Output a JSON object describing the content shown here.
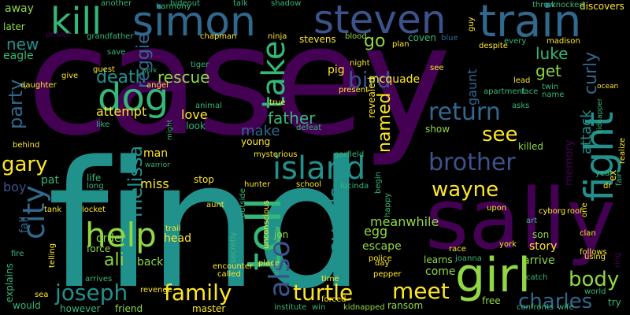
{
  "palette": {
    "background": "#000000",
    "dark_purple": "#440154",
    "indigo": "#3b528b",
    "slate_blue": "#31688e",
    "teal": "#21918c",
    "green": "#35b779",
    "lime": "#90d743",
    "yellow": "#fde725"
  },
  "words": [
    "casey",
    "find",
    "sally",
    "tell",
    "girl",
    "simon",
    "steven",
    "train",
    "kill",
    "dog",
    "fight",
    "also",
    "island",
    "help",
    "take",
    "city",
    "joseph",
    "family",
    "turtle",
    "meet",
    "charles",
    "body",
    "return",
    "brother",
    "wayne",
    "reveals",
    "see",
    "gary",
    "party",
    "bird",
    "melissa",
    "death",
    "rescue",
    "reggie",
    "luke",
    "curly",
    "get",
    "ali",
    "father",
    "named",
    "make",
    "go",
    "new",
    "away",
    "eagle",
    "attack",
    "gaunt",
    "memory",
    "mcquade",
    "pig",
    "love",
    "attempt",
    "miss",
    "pat",
    "boy",
    "egg",
    "meanwhile",
    "escape",
    "come",
    "learns",
    "arrive",
    "son",
    "story",
    "head",
    "back",
    "order",
    "force",
    "fall",
    "explains",
    "would",
    "however",
    "master",
    "friend",
    "ransom",
    "free",
    "killed",
    "show",
    "stevens",
    "coven",
    "young",
    "man",
    "life",
    "stop",
    "jon",
    "later",
    "power",
    "grandfather",
    "chapman",
    "ninja",
    "blood",
    "harmony",
    "work",
    "daughter",
    "behind",
    "sea",
    "telling",
    "tank",
    "locket",
    "trail",
    "aunt",
    "hunter",
    "school",
    "police",
    "cyborg",
    "clan",
    "joanna",
    "pepper",
    "day",
    "time",
    "kidnapped",
    "institute",
    "win",
    "forced",
    "confronts",
    "wife",
    "try",
    "discovers",
    "throw",
    "knocked",
    "madison",
    "guy",
    "blue",
    "plan",
    "see",
    "night",
    "present",
    "true",
    "defeat",
    "revealed",
    "garfield",
    "lucinda",
    "begin",
    "happy",
    "mysterious",
    "outside",
    "secretly",
    "encounter",
    "called",
    "place",
    "offer",
    "unconscious",
    "lead",
    "face",
    "twin",
    "name",
    "asks",
    "ocean",
    "kidnapper",
    "apartment",
    "despite",
    "every",
    "follows",
    "dr",
    "ex",
    "year",
    "fair",
    "realize",
    "ring",
    "using",
    "one",
    "roof",
    "art",
    "upon",
    "york",
    "race",
    "catch",
    "world",
    "arrives",
    "revenge",
    "fire",
    "long",
    "warrior",
    "might",
    "animal",
    "look",
    "like",
    "give",
    "guest",
    "angel",
    "tiger",
    "talk",
    "shadow",
    "hideout",
    "another",
    "save",
    "turn"
  ]
}
